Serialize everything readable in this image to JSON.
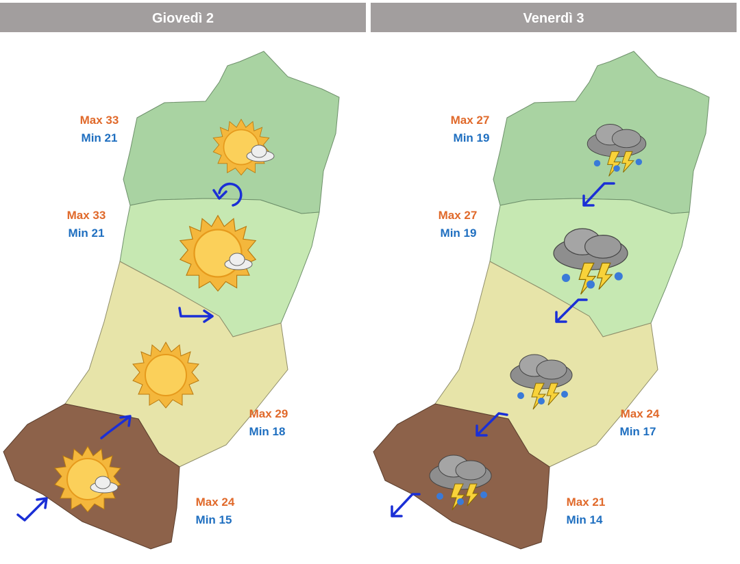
{
  "panels": [
    {
      "title": "Giovedì 2",
      "zones": [
        {
          "max": "Max 33",
          "min": "Min 21"
        },
        {
          "max": "Max 33",
          "min": "Min 21"
        },
        {
          "max": "Max 29",
          "min": "Min 18"
        },
        {
          "max": "Max 24",
          "min": "Min 15"
        }
      ]
    },
    {
      "title": "Venerdì 3",
      "zones": [
        {
          "max": "Max 27",
          "min": "Min 19"
        },
        {
          "max": "Max 27",
          "min": "Min 19"
        },
        {
          "max": "Max 24",
          "min": "Min 17"
        },
        {
          "max": "Max 21",
          "min": "Min 14"
        }
      ]
    }
  ]
}
